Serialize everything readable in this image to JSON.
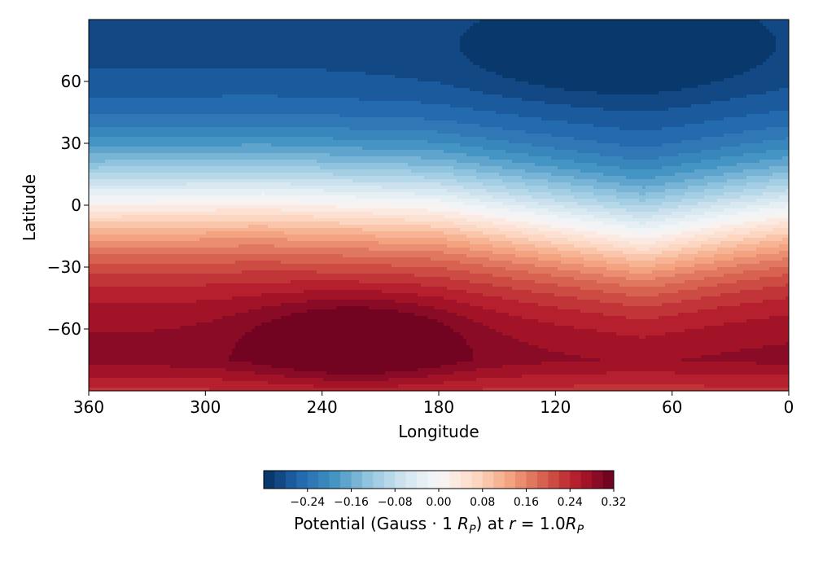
{
  "chart_data": {
    "type": "heatmap",
    "subtype": "filled contour map",
    "title": "",
    "xlabel": "Longitude",
    "ylabel": "Latitude",
    "xlim": [
      360,
      0
    ],
    "ylim": [
      -90,
      90
    ],
    "x_ticks": [
      360,
      300,
      240,
      180,
      120,
      60,
      0
    ],
    "x_tick_labels": [
      "360",
      "300",
      "240",
      "180",
      "120",
      "60",
      "0"
    ],
    "y_ticks": [
      60,
      30,
      0,
      -30,
      -60
    ],
    "y_tick_labels": [
      "60",
      "30",
      "0",
      "−30",
      "−60"
    ],
    "grid": false,
    "colormap": "RdBu_r",
    "colorbar": {
      "label_prefix": "Potential (Gauss · 1 ",
      "label_rp1": "R",
      "label_sub1": "P",
      "label_mid": ") at ",
      "label_r": "r",
      "label_eq": " = 1.0",
      "label_rp2": "R",
      "label_sub2": "P",
      "range": [
        -0.32,
        0.32
      ],
      "level_step": 0.02,
      "ticks": [
        -0.24,
        -0.16,
        -0.08,
        0.0,
        0.08,
        0.16,
        0.24,
        0.32
      ],
      "tick_labels": [
        "−0.24",
        "−0.16",
        "−0.08",
        "0.00",
        "0.08",
        "0.16",
        "0.24",
        "0.32"
      ],
      "placement": "bottom"
    },
    "field_description": {
      "north_pole_value": -0.31,
      "south_pole_value": 0.25,
      "zero_contour_latitude": [
        {
          "lon": 360,
          "lat": 2
        },
        {
          "lon": 270,
          "lat": 3
        },
        {
          "lon": 180,
          "lat": 0
        },
        {
          "lon": 120,
          "lat": -8
        },
        {
          "lon": 75,
          "lat": -14
        },
        {
          "lon": 30,
          "lat": -7
        },
        {
          "lon": 0,
          "lat": -3
        }
      ],
      "maximum": {
        "lon": 222,
        "lat": -65,
        "value": 0.31
      },
      "minimum": {
        "lon": 90,
        "lat": 70,
        "value": -0.32
      }
    }
  }
}
